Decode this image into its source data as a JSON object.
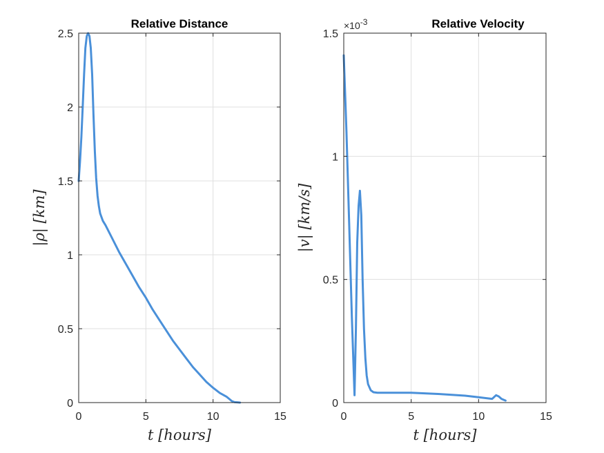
{
  "chart_data": [
    {
      "type": "line",
      "title": "Relative Distance",
      "xlabel": "t [hours]",
      "ylabel": "|ρ| [km]",
      "xlim": [
        0,
        15
      ],
      "ylim": [
        0,
        2.5
      ],
      "xticks": [
        0,
        5,
        10,
        15
      ],
      "yticks": [
        0,
        0.5,
        1,
        1.5,
        2,
        2.5
      ],
      "xtick_labels": [
        "0",
        "5",
        "10",
        "15"
      ],
      "ytick_labels": [
        "0",
        "0.5",
        "1",
        "1.5",
        "2",
        "2.5"
      ],
      "grid": true,
      "color": "#4a90d9",
      "series": [
        {
          "x": [
            0,
            0.1,
            0.2,
            0.3,
            0.4,
            0.5,
            0.6,
            0.7,
            0.8,
            0.9,
            1.0,
            1.1,
            1.2,
            1.3,
            1.4,
            1.5,
            1.6,
            1.8,
            2.0,
            2.5,
            3,
            3.5,
            4,
            4.5,
            5,
            5.5,
            6,
            6.5,
            7,
            7.5,
            8,
            8.5,
            9,
            9.5,
            10,
            10.5,
            11,
            11.2,
            11.4,
            11.6,
            11.8,
            12
          ],
          "y": [
            1.5,
            1.63,
            1.8,
            2.0,
            2.22,
            2.4,
            2.48,
            2.5,
            2.48,
            2.4,
            2.22,
            1.95,
            1.7,
            1.52,
            1.4,
            1.33,
            1.28,
            1.23,
            1.2,
            1.11,
            1.02,
            0.94,
            0.86,
            0.78,
            0.71,
            0.63,
            0.56,
            0.49,
            0.42,
            0.36,
            0.3,
            0.24,
            0.19,
            0.14,
            0.1,
            0.065,
            0.04,
            0.025,
            0.01,
            0.003,
            0.002,
            0.0
          ]
        }
      ]
    },
    {
      "type": "line",
      "title": "Relative Velocity",
      "xlabel": "t [hours]",
      "ylabel": "|v| [km/s]",
      "exponent_label": "×10",
      "exponent_power": "-3",
      "xlim": [
        0,
        15
      ],
      "ylim": [
        0,
        0.0015
      ],
      "xticks": [
        0,
        5,
        10,
        15
      ],
      "yticks": [
        0,
        0.0005,
        0.001,
        0.0015
      ],
      "xtick_labels": [
        "0",
        "5",
        "10",
        "15"
      ],
      "ytick_labels": [
        "0",
        "0.5",
        "1",
        "1.5"
      ],
      "grid": true,
      "color": "#4a90d9",
      "series": [
        {
          "x": [
            0,
            0.2,
            0.4,
            0.6,
            0.8,
            0.9,
            1.0,
            1.1,
            1.2,
            1.3,
            1.4,
            1.5,
            1.6,
            1.7,
            1.8,
            2.0,
            2.2,
            2.5,
            3,
            5,
            7,
            9,
            10,
            11,
            11.3,
            11.5,
            11.7,
            12
          ],
          "y": [
            0.00141,
            0.0011,
            0.00073,
            0.00035,
            3e-05,
            0.0003,
            0.00065,
            0.0008,
            0.00086,
            0.00076,
            0.0005,
            0.0003,
            0.00018,
            0.00011,
            7.5e-05,
            5e-05,
            4.2e-05,
            4e-05,
            4e-05,
            4e-05,
            3.5e-05,
            2.8e-05,
            2.2e-05,
            1.5e-05,
            3e-05,
            2.5e-05,
            1.5e-05,
            8e-06
          ]
        }
      ]
    }
  ]
}
